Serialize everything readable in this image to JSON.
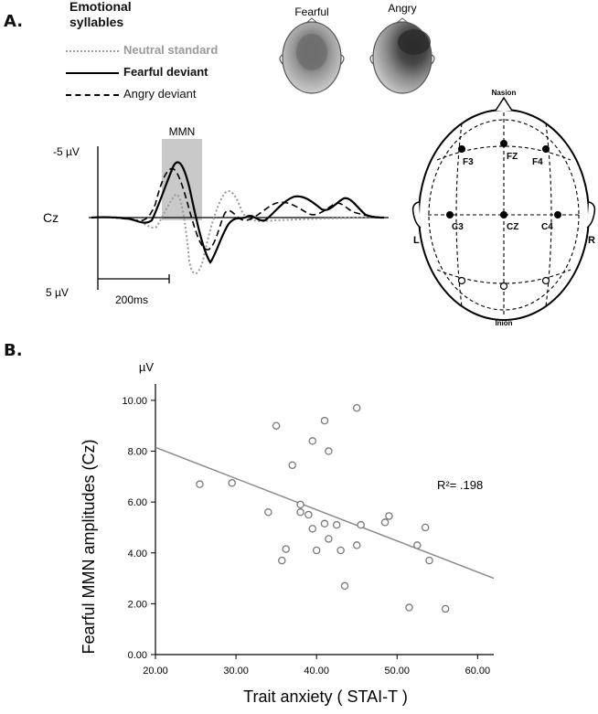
{
  "panelA": {
    "label": "A.",
    "legend": {
      "title": [
        "Emotional",
        "syllables"
      ],
      "items": [
        {
          "label": "Neutral standard",
          "style": "dotted",
          "color": "#9a9a9a",
          "bold": true
        },
        {
          "label": "Fearful deviant",
          "style": "solid",
          "color": "#000000",
          "bold": true
        },
        {
          "label": "Angry deviant",
          "style": "dashed",
          "color": "#000000",
          "bold": false
        }
      ]
    },
    "topo_maps": [
      {
        "label": "Fearful"
      },
      {
        "label": "Angry"
      }
    ],
    "erp": {
      "channel": "Cz",
      "window_label": "MMN",
      "scale_top": "-5 µV",
      "scale_bottom": "5 µV",
      "time_scale": "200ms"
    },
    "electrodes": {
      "top": "Nasion",
      "bottom": "Inion",
      "left": "L",
      "right": "R",
      "sites": [
        "F3",
        "FZ",
        "F4",
        "C3",
        "CZ",
        "C4"
      ]
    }
  },
  "panelB": {
    "label": "B.",
    "r_squared": "R²= .198"
  },
  "chart_data": {
    "type": "scatter",
    "title": "",
    "xlabel": "Trait anxiety ( STAI-T )",
    "ylabel": "Fearful MMN amplitudes (Cz)",
    "y_unit": "µV",
    "xlim": [
      20,
      62
    ],
    "ylim": [
      0,
      10.5
    ],
    "xticks": [
      "20.00",
      "30.00",
      "40.00",
      "50.00",
      "60.00"
    ],
    "yticks": [
      "0.00",
      "2.00",
      "4.00",
      "6.00",
      "8.00",
      "10.00"
    ],
    "grid": false,
    "points": [
      [
        25.5,
        6.7
      ],
      [
        29.5,
        6.75
      ],
      [
        34,
        5.6
      ],
      [
        35,
        9.0
      ],
      [
        35.7,
        3.7
      ],
      [
        36.2,
        4.15
      ],
      [
        37,
        7.45
      ],
      [
        38,
        5.9
      ],
      [
        38,
        5.6
      ],
      [
        39,
        5.5
      ],
      [
        39.5,
        8.4
      ],
      [
        39.5,
        4.95
      ],
      [
        40,
        4.1
      ],
      [
        41,
        9.2
      ],
      [
        41,
        5.15
      ],
      [
        41.5,
        8.0
      ],
      [
        41.5,
        4.55
      ],
      [
        42.5,
        5.1
      ],
      [
        43,
        4.1
      ],
      [
        43.5,
        2.7
      ],
      [
        45,
        9.7
      ],
      [
        45,
        4.3
      ],
      [
        45.5,
        5.1
      ],
      [
        48.5,
        5.2
      ],
      [
        49,
        5.45
      ],
      [
        51.5,
        1.85
      ],
      [
        52.5,
        4.3
      ],
      [
        53.5,
        5.0
      ],
      [
        54,
        3.7
      ],
      [
        56,
        1.8
      ]
    ],
    "fit_line": {
      "x": [
        20,
        62
      ],
      "y": [
        8.15,
        3.0
      ]
    }
  }
}
